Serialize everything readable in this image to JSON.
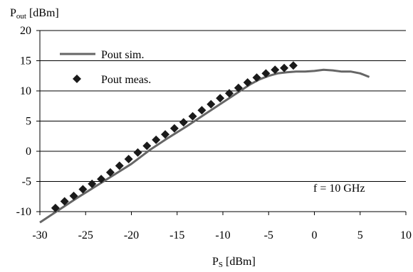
{
  "chart_data": {
    "type": "line",
    "ylabel_main": "P",
    "ylabel_sub": "out",
    "ylabel_unit": " [dBm]",
    "xlabel_main": "P",
    "xlabel_sub": "S",
    "xlabel_unit": " [dBm]",
    "xlim": [
      -30,
      10
    ],
    "ylim": [
      -10,
      20
    ],
    "xticks": [
      -30,
      -25,
      -20,
      -15,
      -10,
      -5,
      0,
      5,
      10
    ],
    "yticks": [
      -10,
      -5,
      0,
      5,
      10,
      15,
      20
    ],
    "grid": "horizontal",
    "legend_position": "top-left",
    "annotation": "f = 10 GHz",
    "series": [
      {
        "name": "Pout sim.",
        "style": "line",
        "color": "#666666",
        "x": [
          -30,
          -28,
          -26,
          -24,
          -22,
          -20,
          -18,
          -16,
          -14,
          -12,
          -10,
          -8,
          -7,
          -6,
          -5,
          -4,
          -3,
          -2,
          -1,
          0,
          1,
          2,
          3,
          4,
          5,
          6
        ],
        "y": [
          -11.8,
          -9.8,
          -7.8,
          -5.9,
          -4,
          -2.1,
          0.2,
          2.2,
          4.1,
          6.1,
          8.1,
          10.1,
          11.1,
          11.9,
          12.5,
          12.9,
          13.1,
          13.2,
          13.2,
          13.3,
          13.5,
          13.4,
          13.2,
          13.2,
          12.9,
          12.3
        ]
      },
      {
        "name": "Pout meas.",
        "style": "markers",
        "color": "#1a1a1a",
        "x": [
          -28.3,
          -27.3,
          -26.3,
          -25.3,
          -24.3,
          -23.3,
          -22.3,
          -21.3,
          -20.3,
          -19.3,
          -18.3,
          -17.3,
          -16.3,
          -15.3,
          -14.3,
          -13.3,
          -12.3,
          -11.3,
          -10.3,
          -9.3,
          -8.3,
          -7.3,
          -6.3,
          -5.3,
          -4.3,
          -3.3,
          -2.3
        ],
        "y": [
          -9.4,
          -8.3,
          -7.4,
          -6.3,
          -5.4,
          -4.6,
          -3.5,
          -2.4,
          -1.3,
          -0.2,
          0.9,
          1.9,
          2.8,
          3.8,
          4.8,
          5.8,
          6.8,
          7.8,
          8.8,
          9.6,
          10.5,
          11.4,
          12.2,
          12.9,
          13.5,
          13.8,
          14.2
        ]
      }
    ]
  }
}
